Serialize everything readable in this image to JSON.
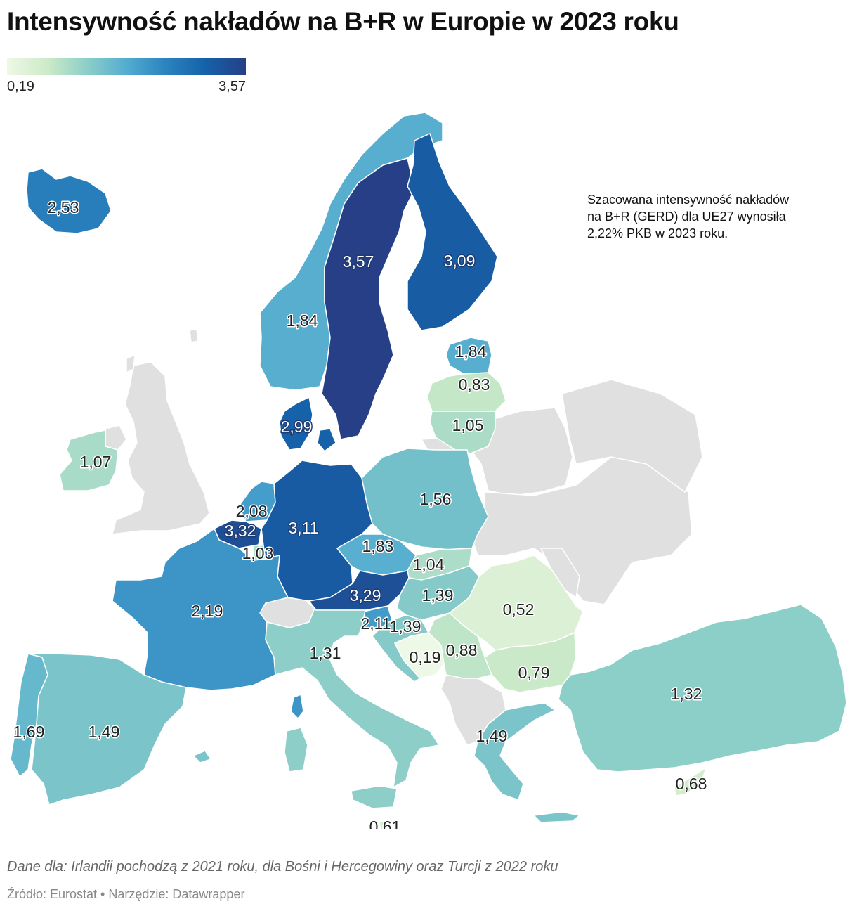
{
  "title": "Intensywność nakładów na B+R w Europie w 2023 roku",
  "legend": {
    "min_label": "0,19",
    "max_label": "3,57",
    "min_value": 0.19,
    "max_value": 3.57,
    "colors": [
      "#eef8e6",
      "#cdebc8",
      "#8ccfc8",
      "#53acd0",
      "#2a83be",
      "#1561a9",
      "#263f86"
    ]
  },
  "note": "Szacowana intensywność nakładów na B+R (GERD) dla UE27 wynosiła 2,22% PKB w 2023 roku.",
  "footnote": "Dane dla: Irlandii pochodzą z 2021 roku, dla Bośni i Hercegowiny oraz Turcji z 2022 roku",
  "source": "Źródło: Eurostat • Narzędzie: Datawrapper",
  "no_data_color": "#e0e0e0",
  "map": {
    "iceland": {
      "value_label": "2,53",
      "value": 2.53
    },
    "norway": {
      "value_label": "1,84",
      "value": 1.84
    },
    "sweden": {
      "value_label": "3,57",
      "value": 3.57
    },
    "finland": {
      "value_label": "3,09",
      "value": 3.09
    },
    "estonia": {
      "value_label": "1,84",
      "value": 1.84
    },
    "latvia": {
      "value_label": "0,83",
      "value": 0.83
    },
    "lithuania": {
      "value_label": "1,05",
      "value": 1.05
    },
    "denmark": {
      "value_label": "2,99",
      "value": 2.99
    },
    "ireland": {
      "value_label": "1,07",
      "value": 1.07
    },
    "netherlands": {
      "value_label": "2,08",
      "value": 2.08
    },
    "belgium": {
      "value_label": "3,32",
      "value": 3.32
    },
    "luxembourg": {
      "value_label": "1,03",
      "value": 1.03
    },
    "germany": {
      "value_label": "3,11",
      "value": 3.11
    },
    "poland": {
      "value_label": "1,56",
      "value": 1.56
    },
    "czechia": {
      "value_label": "1,83",
      "value": 1.83
    },
    "slovakia": {
      "value_label": "1,04",
      "value": 1.04
    },
    "austria": {
      "value_label": "3,29",
      "value": 3.29
    },
    "hungary": {
      "value_label": "1,39",
      "value": 1.39
    },
    "slovenia": {
      "value_label": "2,11",
      "value": 2.11
    },
    "croatia": {
      "value_label": "1,39",
      "value": 1.39
    },
    "romania": {
      "value_label": "0,52",
      "value": 0.52
    },
    "france": {
      "value_label": "2,19",
      "value": 2.19
    },
    "italy": {
      "value_label": "1,31",
      "value": 1.31
    },
    "bosnia": {
      "value_label": "0,19",
      "value": 0.19
    },
    "serbia": {
      "value_label": "0,88",
      "value": 0.88
    },
    "bulgaria": {
      "value_label": "0,79",
      "value": 0.79
    },
    "portugal": {
      "value_label": "1,69",
      "value": 1.69
    },
    "spain": {
      "value_label": "1,49",
      "value": 1.49
    },
    "greece": {
      "value_label": "1,49",
      "value": 1.49
    },
    "turkey": {
      "value_label": "1,32",
      "value": 1.32
    },
    "cyprus": {
      "value_label": "0,68",
      "value": 0.68
    },
    "malta": {
      "value_label": "0,61",
      "value": 0.61
    }
  }
}
